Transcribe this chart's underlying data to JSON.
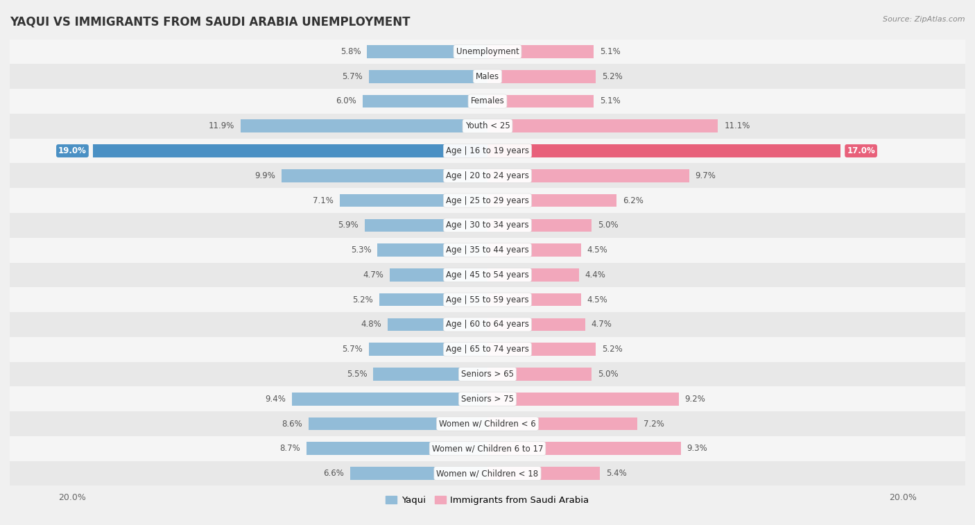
{
  "title": "YAQUI VS IMMIGRANTS FROM SAUDI ARABIA UNEMPLOYMENT",
  "source": "Source: ZipAtlas.com",
  "categories": [
    "Unemployment",
    "Males",
    "Females",
    "Youth < 25",
    "Age | 16 to 19 years",
    "Age | 20 to 24 years",
    "Age | 25 to 29 years",
    "Age | 30 to 34 years",
    "Age | 35 to 44 years",
    "Age | 45 to 54 years",
    "Age | 55 to 59 years",
    "Age | 60 to 64 years",
    "Age | 65 to 74 years",
    "Seniors > 65",
    "Seniors > 75",
    "Women w/ Children < 6",
    "Women w/ Children 6 to 17",
    "Women w/ Children < 18"
  ],
  "yaqui": [
    5.8,
    5.7,
    6.0,
    11.9,
    19.0,
    9.9,
    7.1,
    5.9,
    5.3,
    4.7,
    5.2,
    4.8,
    5.7,
    5.5,
    9.4,
    8.6,
    8.7,
    6.6
  ],
  "immigrants": [
    5.1,
    5.2,
    5.1,
    11.1,
    17.0,
    9.7,
    6.2,
    5.0,
    4.5,
    4.4,
    4.5,
    4.7,
    5.2,
    5.0,
    9.2,
    7.2,
    9.3,
    5.4
  ],
  "yaqui_color": "#92bcd8",
  "immigrants_color": "#f2a7bb",
  "yaqui_highlight_color": "#4a90c4",
  "immigrants_highlight_color": "#e8607a",
  "background_color": "#f0f0f0",
  "row_bg_even": "#f5f5f5",
  "row_bg_odd": "#e8e8e8",
  "max_value": 20.0,
  "legend_yaqui": "Yaqui",
  "legend_immigrants": "Immigrants from Saudi Arabia",
  "title_fontsize": 12,
  "label_fontsize": 8.5,
  "value_fontsize": 8.5,
  "highlight_idx": 4
}
